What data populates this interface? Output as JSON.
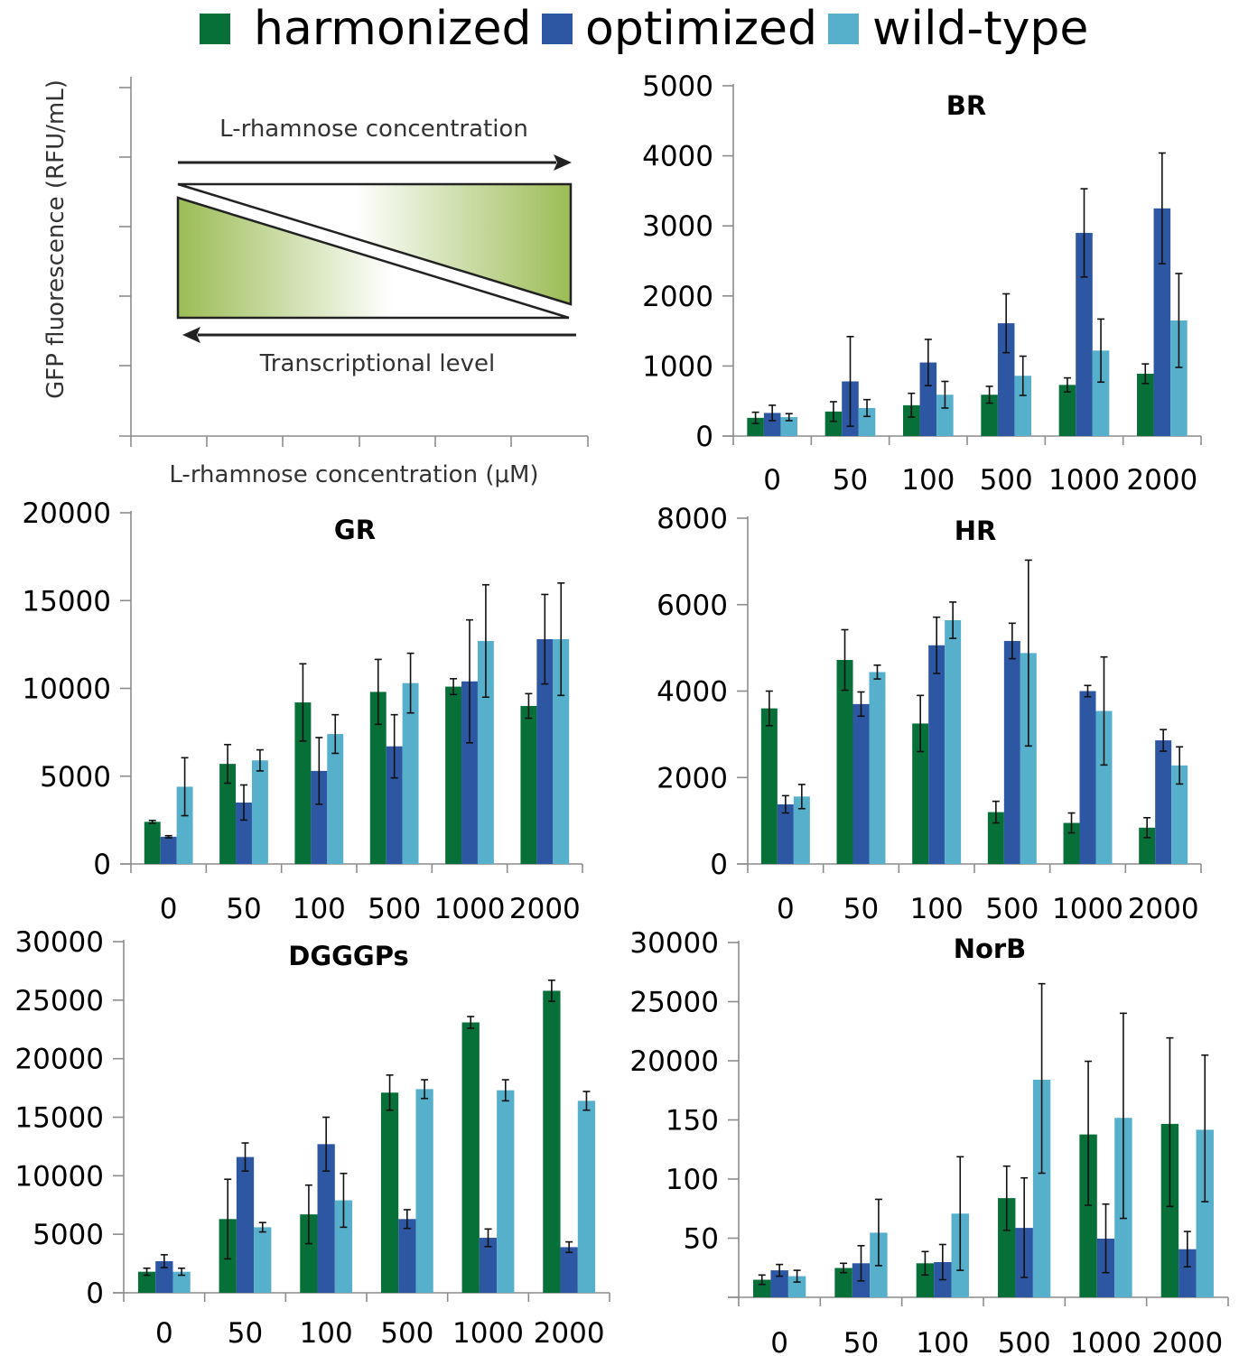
{
  "legend": [
    {
      "name": "harmonized",
      "color": "#077039"
    },
    {
      "name": "optimized",
      "color": "#2d56a3"
    },
    {
      "name": "wild-type",
      "color": "#56b0cb"
    }
  ],
  "schematic": {
    "y_label": "GFP fluorescence (RFU/mL)",
    "x_label": "L-rhamnose concentration (μM)",
    "top_arrow_label": "L-rhamnose concentration",
    "bottom_arrow_label": "Transcriptional level",
    "gradient_color": "#9bbc55"
  },
  "chart_data": [
    {
      "type": "bar",
      "title": "BR",
      "categories": [
        "0",
        "50",
        "100",
        "500",
        "1000",
        "2000"
      ],
      "ylim": [
        0,
        5000
      ],
      "yticks": [
        "0",
        "1000",
        "2000",
        "3000",
        "4000",
        "5000"
      ],
      "series": [
        {
          "name": "harmonized",
          "values": [
            260,
            350,
            440,
            590,
            730,
            890
          ],
          "errors": [
            80,
            140,
            170,
            120,
            100,
            140
          ]
        },
        {
          "name": "optimized",
          "values": [
            330,
            780,
            1050,
            1610,
            2900,
            3250
          ],
          "errors": [
            110,
            640,
            330,
            420,
            630,
            790
          ]
        },
        {
          "name": "wild-type",
          "values": [
            270,
            400,
            590,
            860,
            1220,
            1650
          ],
          "errors": [
            50,
            120,
            190,
            280,
            450,
            670
          ]
        }
      ]
    },
    {
      "type": "bar",
      "title": "GR",
      "categories": [
        "0",
        "50",
        "100",
        "500",
        "1000",
        "2000"
      ],
      "ylim": [
        0,
        20000
      ],
      "yticks": [
        "0",
        "5000",
        "10000",
        "15000",
        "20000"
      ],
      "series": [
        {
          "name": "harmonized",
          "values": [
            2400,
            5700,
            9200,
            9800,
            10100,
            9000
          ],
          "errors": [
            80,
            1100,
            2200,
            1850,
            450,
            700
          ]
        },
        {
          "name": "optimized",
          "values": [
            1550,
            3500,
            5300,
            6700,
            10400,
            12800
          ],
          "errors": [
            60,
            1000,
            1900,
            1800,
            3500,
            2550
          ]
        },
        {
          "name": "wild-type",
          "values": [
            4400,
            5900,
            7400,
            10300,
            12700,
            12800
          ],
          "errors": [
            1650,
            600,
            1100,
            1700,
            3200,
            3200
          ]
        }
      ]
    },
    {
      "type": "bar",
      "title": "HR",
      "categories": [
        "0",
        "50",
        "100",
        "500",
        "1000",
        "2000"
      ],
      "ylim": [
        0,
        8000
      ],
      "yticks": [
        "0",
        "2000",
        "4000",
        "6000",
        "8000"
      ],
      "series": [
        {
          "name": "harmonized",
          "values": [
            3600,
            4720,
            3250,
            1200,
            950,
            840
          ],
          "errors": [
            400,
            700,
            650,
            250,
            230,
            230
          ]
        },
        {
          "name": "optimized",
          "values": [
            1380,
            3700,
            5060,
            5160,
            4000,
            2860
          ],
          "errors": [
            200,
            280,
            650,
            410,
            130,
            250
          ]
        },
        {
          "name": "wild-type",
          "values": [
            1560,
            4440,
            5640,
            4880,
            3540,
            2280
          ],
          "errors": [
            280,
            160,
            420,
            2150,
            1250,
            430
          ]
        }
      ]
    },
    {
      "type": "bar",
      "title": "DGGGPs",
      "categories": [
        "0",
        "50",
        "100",
        "500",
        "1000",
        "2000"
      ],
      "ylim": [
        0,
        30000
      ],
      "yticks": [
        "0",
        "5000",
        "10000",
        "15000",
        "20000",
        "25000",
        "30000"
      ],
      "series": [
        {
          "name": "harmonized",
          "values": [
            1800,
            6300,
            6700,
            17100,
            23100,
            25800
          ],
          "errors": [
            300,
            3400,
            2500,
            1500,
            500,
            900
          ]
        },
        {
          "name": "optimized",
          "values": [
            2700,
            11600,
            12700,
            6300,
            4700,
            3900
          ],
          "errors": [
            550,
            1200,
            2300,
            800,
            750,
            450
          ]
        },
        {
          "name": "wild-type",
          "values": [
            1800,
            5600,
            7900,
            17400,
            17300,
            16400
          ],
          "errors": [
            300,
            400,
            2300,
            800,
            900,
            800
          ]
        }
      ]
    },
    {
      "type": "bar",
      "title": "NorB",
      "categories": [
        "0",
        "50",
        "100",
        "500",
        "1000",
        "2000"
      ],
      "yticks": [
        "",
        "50",
        "100",
        "150",
        "20000",
        "25000",
        "30000"
      ],
      "series": [
        {
          "name": "harmonized",
          "values": [
            15,
            25,
            29,
            84,
            138,
            147
          ],
          "errors": [
            4,
            4,
            10,
            27,
            60,
            70
          ]
        },
        {
          "name": "optimized",
          "values": [
            23,
            29,
            30,
            59,
            50,
            41
          ],
          "errors": [
            5,
            15,
            15,
            42,
            29,
            15
          ]
        },
        {
          "name": "wild-type",
          "values": [
            18,
            55,
            71,
            183,
            152,
            142
          ],
          "errors": [
            5,
            28,
            48,
            78,
            85,
            61
          ]
        }
      ]
    }
  ]
}
